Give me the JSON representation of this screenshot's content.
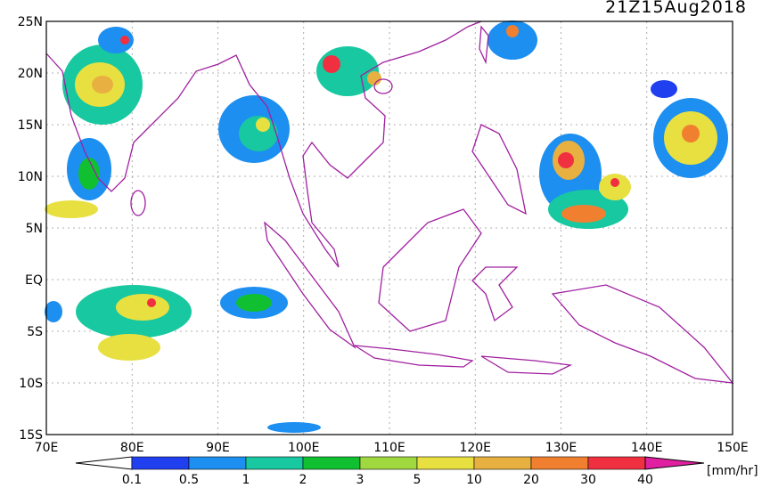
{
  "title": "21Z15Aug2018",
  "lat_labels": [
    "25N",
    "20N",
    "15N",
    "10N",
    "5N",
    "EQ",
    "5S",
    "10S",
    "15S"
  ],
  "lon_labels": [
    "70E",
    "80E",
    "90E",
    "100E",
    "110E",
    "120E",
    "130E",
    "140E",
    "150E"
  ],
  "colorbar": {
    "labels": [
      "0.1",
      "0.5",
      "1",
      "2",
      "3",
      "5",
      "10",
      "20",
      "30",
      "40"
    ],
    "colors": [
      "#2040f0",
      "#1c8ff0",
      "#18c8a0",
      "#10c030",
      "#a0d840",
      "#e8e040",
      "#e8b040",
      "#f08030",
      "#f03040",
      "#e020a0"
    ],
    "unit": "[mm/hr]"
  }
}
